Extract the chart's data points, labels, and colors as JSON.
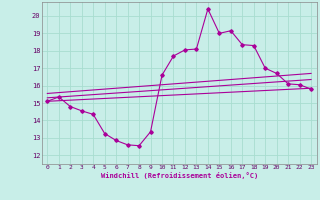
{
  "xlabel": "Windchill (Refroidissement éolien,°C)",
  "background_color": "#c8eee8",
  "grid_color": "#a8ddd0",
  "line_color": "#aa0099",
  "spine_color": "#888888",
  "tick_label_color": "#660066",
  "xlim": [
    -0.5,
    23.5
  ],
  "ylim": [
    11.5,
    20.8
  ],
  "yticks": [
    12,
    13,
    14,
    15,
    16,
    17,
    18,
    19,
    20
  ],
  "xticks": [
    0,
    1,
    2,
    3,
    4,
    5,
    6,
    7,
    8,
    9,
    10,
    11,
    12,
    13,
    14,
    15,
    16,
    17,
    18,
    19,
    20,
    21,
    22,
    23
  ],
  "main_line_x": [
    0,
    1,
    2,
    3,
    4,
    5,
    6,
    7,
    8,
    9,
    10,
    11,
    12,
    13,
    14,
    15,
    16,
    17,
    18,
    19,
    20,
    21,
    22,
    23
  ],
  "main_line_y": [
    15.1,
    15.35,
    14.8,
    14.55,
    14.35,
    13.25,
    12.85,
    12.6,
    12.55,
    13.35,
    16.6,
    17.7,
    18.05,
    18.1,
    20.4,
    19.0,
    19.15,
    18.35,
    18.3,
    17.0,
    16.7,
    16.1,
    16.05,
    15.8
  ],
  "line2_x": [
    0,
    23
  ],
  "line2_y": [
    15.1,
    15.85
  ],
  "line3_x": [
    0,
    23
  ],
  "line3_y": [
    15.3,
    16.35
  ],
  "line4_x": [
    0,
    23
  ],
  "line4_y": [
    15.55,
    16.7
  ]
}
